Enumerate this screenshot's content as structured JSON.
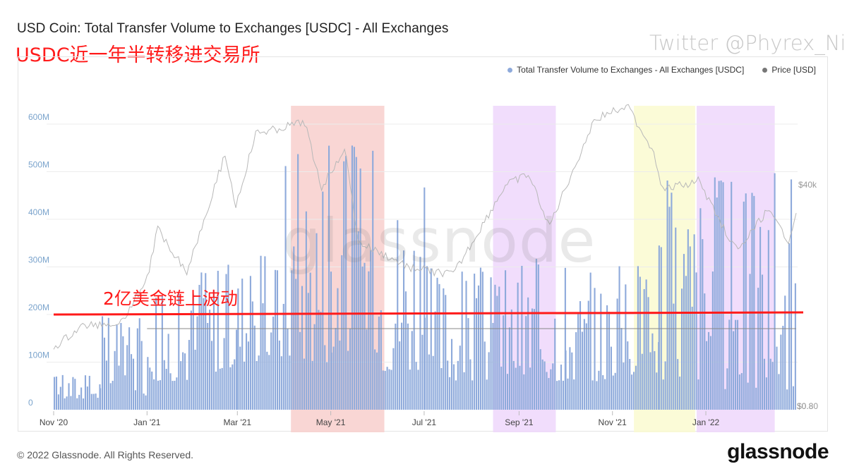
{
  "header": {
    "title": "USD Coin: Total Transfer Volume to Exchanges [USDC] - All Exchanges",
    "annotation_top": "USDC近一年半转移进交易所",
    "twitter": "Twitter @Phyrex_Ni"
  },
  "legend": {
    "series1": "Total Transfer Volume to Exchanges - All Exchanges [USDC]",
    "series2": "Price [USD]"
  },
  "watermark": "glassnode",
  "annotation_mid": "2亿美金链上波动",
  "footer": {
    "copyright": "© 2022 Glassnode. All Rights Reserved.",
    "brand": "glassnode"
  },
  "colors": {
    "bar": "#8eaadb",
    "price": "#b8b8b8",
    "flat_line": "#888888",
    "annotation": "#ff1a1a",
    "band_red": "#f8cfcc",
    "band_purple": "#efd7fb",
    "band_yellow": "#fafad0"
  },
  "chart_data": {
    "type": "bar",
    "title": "USD Coin: Total Transfer Volume to Exchanges [USDC] - All Exchanges",
    "y_unit": "USDC",
    "ylim": [
      0,
      650000000
    ],
    "yticks": [
      {
        "value": 0,
        "label": "0"
      },
      {
        "value": 100000000,
        "label": "100M"
      },
      {
        "value": 200000000,
        "label": "200M"
      },
      {
        "value": 300000000,
        "label": "300M"
      },
      {
        "value": 400000000,
        "label": "400M"
      },
      {
        "value": 500000000,
        "label": "500M"
      },
      {
        "value": 600000000,
        "label": "600M"
      }
    ],
    "xlim": [
      "2020-11-01",
      "2022-03-01"
    ],
    "xticks": [
      {
        "date": "2020-11-01",
        "label": "Nov '20"
      },
      {
        "date": "2021-01-01",
        "label": "Jan '21"
      },
      {
        "date": "2021-03-01",
        "label": "Mar '21"
      },
      {
        "date": "2021-05-01",
        "label": "May '21"
      },
      {
        "date": "2021-07-01",
        "label": "Jul '21"
      },
      {
        "date": "2021-09-01",
        "label": "Sep '21"
      },
      {
        "date": "2021-11-01",
        "label": "Nov '21"
      },
      {
        "date": "2022-01-01",
        "label": "Jan '22"
      }
    ],
    "right_axis_labels": [
      {
        "label": "$40k",
        "value": 40000
      },
      {
        "label": "$0.80",
        "value": 0.8
      },
      {
        "label": "$0.8",
        "value": 0.8
      }
    ],
    "reference_line": {
      "value": 200000000,
      "label": "2亿美金链上波动"
    },
    "highlight_bands": [
      {
        "start": "2021-04-05",
        "end": "2021-06-05",
        "color": "red"
      },
      {
        "start": "2021-08-15",
        "end": "2021-09-25",
        "color": "purple"
      },
      {
        "start": "2021-11-15",
        "end": "2021-12-25",
        "color": "yellow"
      },
      {
        "start": "2021-12-26",
        "end": "2022-02-15",
        "color": "purple"
      }
    ],
    "series": [
      {
        "name": "Total Transfer Volume to Exchanges - All Exchanges [USDC]",
        "kind": "bar",
        "monthly_typical": [
          {
            "month": "2020-11",
            "low": 20000000,
            "high": 80000000
          },
          {
            "month": "2020-12",
            "low": 30000000,
            "high": 200000000
          },
          {
            "month": "2021-01",
            "low": 60000000,
            "high": 250000000
          },
          {
            "month": "2021-02",
            "low": 80000000,
            "high": 310000000
          },
          {
            "month": "2021-03",
            "low": 100000000,
            "high": 330000000
          },
          {
            "month": "2021-04",
            "low": 100000000,
            "high": 575000000
          },
          {
            "month": "2021-05",
            "low": 120000000,
            "high": 570000000
          },
          {
            "month": "2021-06",
            "low": 80000000,
            "high": 500000000
          },
          {
            "month": "2021-07",
            "low": 60000000,
            "high": 310000000
          },
          {
            "month": "2021-08",
            "low": 60000000,
            "high": 300000000
          },
          {
            "month": "2021-09",
            "low": 60000000,
            "high": 330000000
          },
          {
            "month": "2021-10",
            "low": 60000000,
            "high": 290000000
          },
          {
            "month": "2021-11",
            "low": 70000000,
            "high": 320000000
          },
          {
            "month": "2021-12",
            "low": 60000000,
            "high": 510000000
          },
          {
            "month": "2022-01",
            "low": 40000000,
            "high": 500000000
          },
          {
            "month": "2022-02",
            "low": 40000000,
            "high": 500000000
          }
        ]
      },
      {
        "name": "Price [USD]",
        "kind": "line",
        "points": [
          [
            "2020-11-01",
            13700
          ],
          [
            "2020-11-20",
            18500
          ],
          [
            "2020-12-15",
            19400
          ],
          [
            "2021-01-01",
            29000
          ],
          [
            "2021-01-08",
            40000
          ],
          [
            "2021-01-27",
            30500
          ],
          [
            "2021-02-21",
            56500
          ],
          [
            "2021-02-28",
            45000
          ],
          [
            "2021-03-13",
            61000
          ],
          [
            "2021-04-14",
            63500
          ],
          [
            "2021-04-25",
            49000
          ],
          [
            "2021-05-10",
            58000
          ],
          [
            "2021-05-19",
            37000
          ],
          [
            "2021-06-21",
            31500
          ],
          [
            "2021-07-20",
            29800
          ],
          [
            "2021-08-23",
            49500
          ],
          [
            "2021-09-07",
            52000
          ],
          [
            "2021-09-21",
            40700
          ],
          [
            "2021-10-20",
            64000
          ],
          [
            "2021-11-10",
            67500
          ],
          [
            "2021-11-28",
            57000
          ],
          [
            "2021-12-04",
            48500
          ],
          [
            "2021-12-27",
            50700
          ],
          [
            "2022-01-10",
            41800
          ],
          [
            "2022-01-22",
            35000
          ],
          [
            "2022-02-10",
            44000
          ],
          [
            "2022-02-24",
            37500
          ],
          [
            "2022-03-01",
            43500
          ]
        ]
      },
      {
        "name": "Price [USD]",
        "kind": "line",
        "note": "USDC price, flat at about $1",
        "points": [
          [
            "2021-01-01",
            1.0
          ],
          [
            "2022-03-01",
            1.0
          ]
        ]
      }
    ]
  }
}
